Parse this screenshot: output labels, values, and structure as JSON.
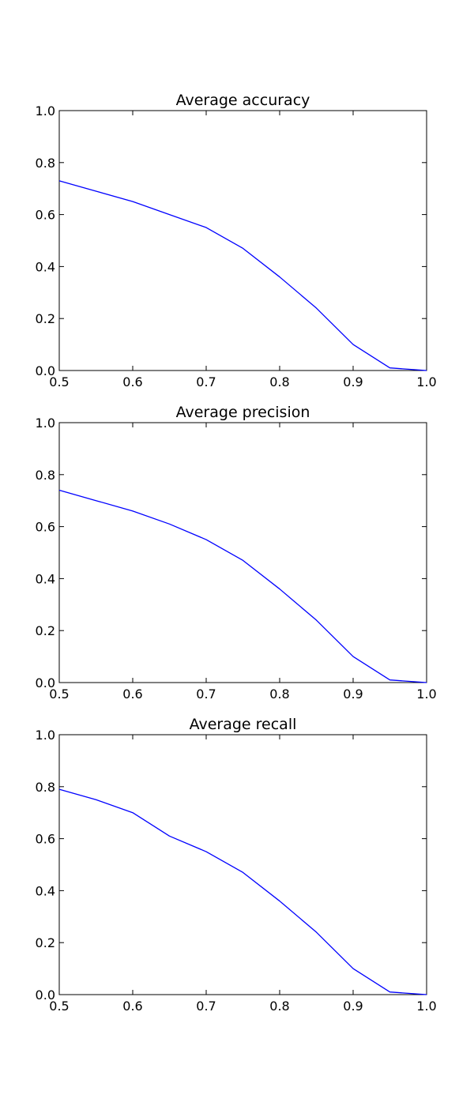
{
  "chart_data": [
    {
      "type": "line",
      "title": "Average accuracy",
      "xlabel": "",
      "ylabel": "",
      "xlim": [
        0.5,
        1.0
      ],
      "ylim": [
        0.0,
        1.0
      ],
      "x_ticks": [
        "0.5",
        "0.6",
        "0.7",
        "0.8",
        "0.9",
        "1.0"
      ],
      "y_ticks": [
        "0.0",
        "0.2",
        "0.4",
        "0.6",
        "0.8",
        "1.0"
      ],
      "grid": false,
      "series": [
        {
          "color": "#0000ff",
          "x": [
            0.5,
            0.55,
            0.6,
            0.65,
            0.7,
            0.75,
            0.8,
            0.85,
            0.9,
            0.95,
            1.0
          ],
          "y": [
            0.73,
            0.69,
            0.65,
            0.6,
            0.55,
            0.47,
            0.36,
            0.24,
            0.1,
            0.01,
            0.0
          ]
        }
      ]
    },
    {
      "type": "line",
      "title": "Average precision",
      "xlabel": "",
      "ylabel": "",
      "xlim": [
        0.5,
        1.0
      ],
      "ylim": [
        0.0,
        1.0
      ],
      "x_ticks": [
        "0.5",
        "0.6",
        "0.7",
        "0.8",
        "0.9",
        "1.0"
      ],
      "y_ticks": [
        "0.0",
        "0.2",
        "0.4",
        "0.6",
        "0.8",
        "1.0"
      ],
      "grid": false,
      "series": [
        {
          "color": "#0000ff",
          "x": [
            0.5,
            0.55,
            0.6,
            0.65,
            0.7,
            0.75,
            0.8,
            0.85,
            0.9,
            0.95,
            1.0
          ],
          "y": [
            0.74,
            0.7,
            0.66,
            0.61,
            0.55,
            0.47,
            0.36,
            0.24,
            0.1,
            0.01,
            0.0
          ]
        }
      ]
    },
    {
      "type": "line",
      "title": "Average recall",
      "xlabel": "",
      "ylabel": "",
      "xlim": [
        0.5,
        1.0
      ],
      "ylim": [
        0.0,
        1.0
      ],
      "x_ticks": [
        "0.5",
        "0.6",
        "0.7",
        "0.8",
        "0.9",
        "1.0"
      ],
      "y_ticks": [
        "0.0",
        "0.2",
        "0.4",
        "0.6",
        "0.8",
        "1.0"
      ],
      "grid": false,
      "series": [
        {
          "color": "#0000ff",
          "x": [
            0.5,
            0.55,
            0.6,
            0.65,
            0.7,
            0.75,
            0.8,
            0.85,
            0.9,
            0.95,
            1.0
          ],
          "y": [
            0.79,
            0.75,
            0.7,
            0.61,
            0.55,
            0.47,
            0.36,
            0.24,
            0.1,
            0.01,
            0.0
          ]
        }
      ]
    }
  ]
}
